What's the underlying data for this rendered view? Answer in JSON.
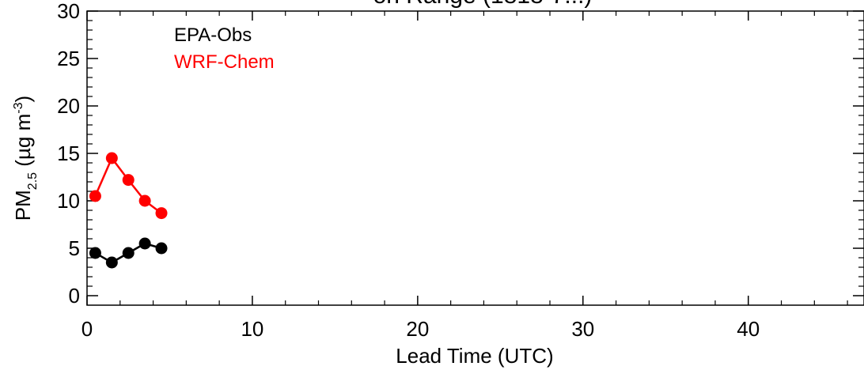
{
  "chart_data": {
    "type": "line",
    "title_visible_fragment": "on Range (1818-7...)",
    "xlabel": "Lead Time (UTC)",
    "ylabel_main": "PM",
    "ylabel_sub": "2.5",
    "ylabel_unit_open": " (µg m",
    "ylabel_unit_sup": "-3",
    "ylabel_unit_close": ")",
    "xlim": [
      0,
      47
    ],
    "ylim": [
      -1,
      30
    ],
    "x_ticks": [
      0,
      10,
      20,
      30,
      40
    ],
    "x_tick_labels": [
      "0",
      "10",
      "20",
      "30",
      "40"
    ],
    "y_ticks": [
      0,
      5,
      10,
      15,
      20,
      25,
      30
    ],
    "y_tick_labels": [
      "0",
      "5",
      "10",
      "15",
      "20",
      "25",
      "30"
    ],
    "grid": false,
    "legend_position": "top-left",
    "series": [
      {
        "name": "EPA-Obs",
        "color": "#000000",
        "x": [
          0.5,
          1.5,
          2.5,
          3.5,
          4.5
        ],
        "y": [
          4.5,
          3.5,
          4.5,
          5.5,
          5.0
        ]
      },
      {
        "name": "WRF-Chem",
        "color": "#ff0000",
        "x": [
          0.5,
          1.5,
          2.5,
          3.5,
          4.5
        ],
        "y": [
          10.5,
          14.5,
          12.2,
          10.0,
          8.7
        ]
      }
    ]
  }
}
